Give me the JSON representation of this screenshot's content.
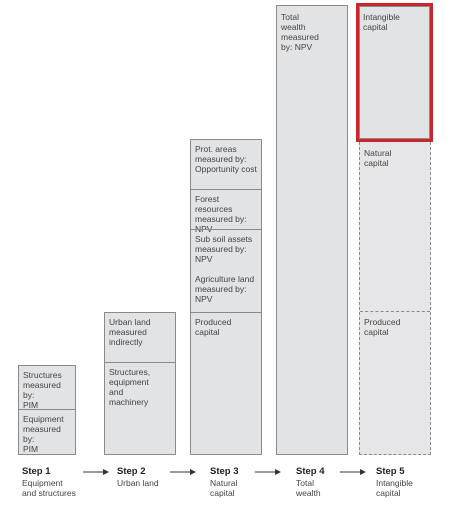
{
  "columns": {
    "step1": {
      "structures": "Structures\nmeasured by:\nPIM",
      "equipment": "Equipment\nmeasured by:\nPIM"
    },
    "step2": {
      "urban_land": "Urban land\nmeasured\nindirectly",
      "structures_equipment": "Structures,\nequipment\nand\nmachinery"
    },
    "step3": {
      "prot_areas": "Prot. areas\nmeasured by:\nOpportunity cost",
      "forest": "Forest resources\nmeasured by:\nNPV",
      "subsoil": "Sub soil assets\nmeasured by:\nNPV",
      "agriculture": "Agriculture land\nmeasured by:\nNPV",
      "produced": "Produced\ncapital"
    },
    "step4": {
      "total_wealth": "Total\nwealth\nmeasured\nby: NPV"
    },
    "step5": {
      "intangible": "Intangible\ncapital",
      "natural": "Natural\ncapital",
      "produced": "Produced\ncapital"
    }
  },
  "steps": [
    {
      "title": "Step 1",
      "desc": "Equipment\nand structures"
    },
    {
      "title": "Step 2",
      "desc": "Urban land"
    },
    {
      "title": "Step 3",
      "desc": "Natural\ncapital"
    },
    {
      "title": "Step 4",
      "desc": "Total\nwealth"
    },
    {
      "title": "Step 5",
      "desc": "Intangible\ncapital"
    }
  ],
  "colors": {
    "box_fill": "#e2e3e5",
    "border": "#8a8a8a",
    "highlight": "#c9262c"
  }
}
